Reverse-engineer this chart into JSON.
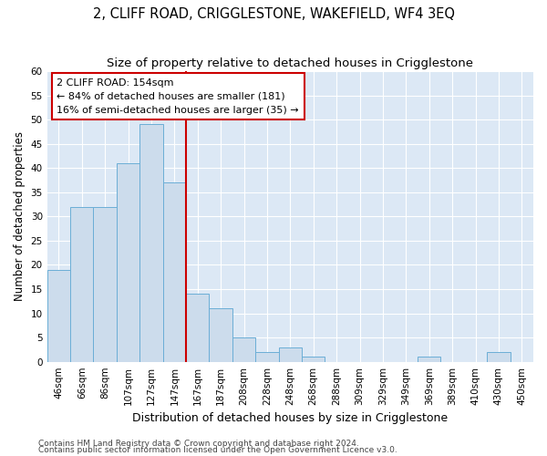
{
  "title": "2, CLIFF ROAD, CRIGGLESTONE, WAKEFIELD, WF4 3EQ",
  "subtitle": "Size of property relative to detached houses in Crigglestone",
  "xlabel": "Distribution of detached houses by size in Crigglestone",
  "ylabel": "Number of detached properties",
  "footnote1": "Contains HM Land Registry data © Crown copyright and database right 2024.",
  "footnote2": "Contains public sector information licensed under the Open Government Licence v3.0.",
  "bar_labels": [
    "46sqm",
    "66sqm",
    "86sqm",
    "107sqm",
    "127sqm",
    "147sqm",
    "167sqm",
    "187sqm",
    "208sqm",
    "228sqm",
    "248sqm",
    "268sqm",
    "288sqm",
    "309sqm",
    "329sqm",
    "349sqm",
    "369sqm",
    "389sqm",
    "410sqm",
    "430sqm",
    "450sqm"
  ],
  "bar_values": [
    19,
    32,
    32,
    41,
    49,
    37,
    14,
    11,
    5,
    2,
    3,
    1,
    0,
    0,
    0,
    0,
    1,
    0,
    0,
    2,
    0
  ],
  "bar_color": "#ccdcec",
  "bar_edge_color": "#6baed6",
  "fig_bg": "#ffffff",
  "axes_bg": "#dce8f5",
  "grid_color": "#ffffff",
  "ylim": [
    0,
    60
  ],
  "yticks": [
    0,
    5,
    10,
    15,
    20,
    25,
    30,
    35,
    40,
    45,
    50,
    55,
    60
  ],
  "annotation_text": "2 CLIFF ROAD: 154sqm\n← 84% of detached houses are smaller (181)\n16% of semi-detached houses are larger (35) →",
  "vline_index": 5.5,
  "vline_color": "#cc0000",
  "annotation_box_color": "#ffffff",
  "annotation_box_edge": "#cc0000",
  "title_fontsize": 10.5,
  "subtitle_fontsize": 9.5,
  "xlabel_fontsize": 9,
  "ylabel_fontsize": 8.5,
  "tick_fontsize": 7.5,
  "annotation_fontsize": 8,
  "footnote_fontsize": 6.5
}
